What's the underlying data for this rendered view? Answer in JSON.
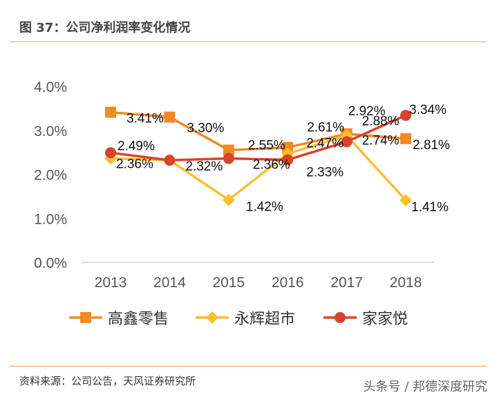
{
  "title": "图 37：公司净利润率变化情况",
  "source": "资料来源：公司公告，天风证券研究所",
  "watermark": "头条号 / 邦德深度研究",
  "chart_data": {
    "type": "line",
    "categories": [
      "2013",
      "2014",
      "2015",
      "2016",
      "2017",
      "2018"
    ],
    "ylim": [
      0,
      4
    ],
    "yticks": [
      "0.0%",
      "1.0%",
      "2.0%",
      "3.0%",
      "4.0%"
    ],
    "legend_position": "bottom",
    "grid": false,
    "series": [
      {
        "name": "高鑫零售",
        "color": "#f08a24",
        "marker": "square",
        "values": [
          3.41,
          3.3,
          2.55,
          2.61,
          2.92,
          2.81
        ],
        "labels": [
          "3.41%",
          "3.30%",
          "2.55%",
          "2.61%",
          "2.92%",
          "2.81%"
        ]
      },
      {
        "name": "永辉超市",
        "color": "#f8bf2f",
        "marker": "diamond",
        "values": [
          2.36,
          2.32,
          1.42,
          2.47,
          2.88,
          1.41
        ],
        "labels": [
          "2.36%",
          null,
          "1.42%",
          "2.47%",
          "2.88%",
          "1.41%"
        ]
      },
      {
        "name": "家家悦",
        "color": "#d8432a",
        "marker": "circle",
        "values": [
          2.49,
          2.32,
          2.36,
          2.33,
          2.74,
          3.34
        ],
        "labels": [
          "2.49%",
          "2.32%",
          "2.36%",
          "2.33%",
          "2.74%",
          "3.34%"
        ]
      }
    ]
  }
}
